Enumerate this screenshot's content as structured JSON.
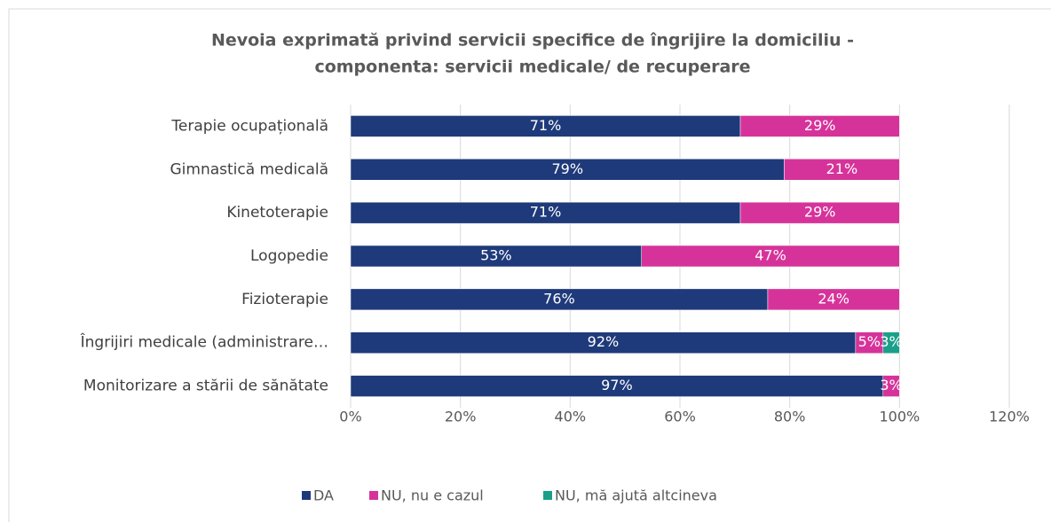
{
  "chart_data": {
    "type": "stacked-bar-horizontal",
    "title": [
      "Nevoia exprimată privind servicii specifice de îngrijire la domiciliu -",
      "componenta: servicii medicale/ de recuperare"
    ],
    "categories": [
      "Terapie ocupațională",
      "Gimnastică medicală",
      "Kinetoterapie",
      "Logopedie",
      "Fizioterapie",
      "Îngrijiri medicale (administrare…",
      "Monitorizare a stării de sănătate"
    ],
    "series": [
      {
        "name": "DA",
        "color": "#1f3a7a",
        "values": [
          71,
          79,
          71,
          53,
          76,
          92,
          97
        ],
        "value_labels": [
          "71%",
          "79%",
          "71%",
          "53%",
          "76%",
          "92%",
          "97%"
        ]
      },
      {
        "name": "NU, nu e cazul",
        "color": "#d6339a",
        "values": [
          29,
          21,
          29,
          47,
          24,
          5,
          3
        ],
        "value_labels": [
          "29%",
          "21%",
          "29%",
          "47%",
          "24%",
          "5%",
          "3%"
        ]
      },
      {
        "name": "NU, mă ajută altcineva",
        "color": "#1aa08a",
        "values": [
          null,
          null,
          null,
          null,
          null,
          3,
          null
        ],
        "value_labels": [
          null,
          null,
          null,
          null,
          null,
          "3%",
          null
        ]
      }
    ],
    "xlim": [
      0,
      120
    ],
    "xticks": [
      {
        "value": 0,
        "label": "0%"
      },
      {
        "value": 20,
        "label": "20%"
      },
      {
        "value": 40,
        "label": "40%"
      },
      {
        "value": 60,
        "label": "60%"
      },
      {
        "value": 80,
        "label": "80%"
      },
      {
        "value": 100,
        "label": "100%"
      },
      {
        "value": 120,
        "label": "120%"
      }
    ],
    "grid": true,
    "legend": "bottom"
  }
}
